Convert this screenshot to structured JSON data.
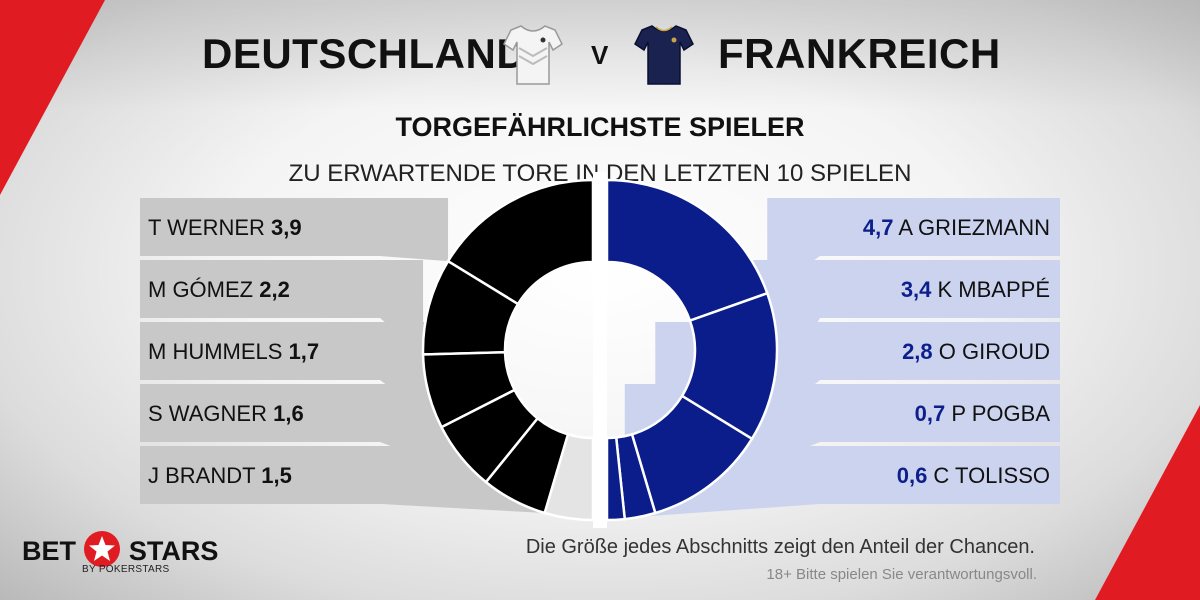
{
  "header": {
    "team_left": "DEUTSCHLAND",
    "vs": "V",
    "team_right": "FRANKREICH"
  },
  "title": "TORGEFÄHRLICHSTE SPIELER",
  "subtitle": "ZU ERWARTENDE TORE IN DEN LETZTEN 10 SPIELEN",
  "footnote": "Die Größe jedes Abschnitts zeigt den Anteil der Chancen.",
  "disclaimer": "18+ Bitte spielen Sie verantwortungsvoll.",
  "logo": {
    "left": "BET",
    "right": "STARS",
    "sub": "BY POKERSTARS"
  },
  "colors": {
    "germany_segment": "#000000",
    "germany_panel": "#c8c8c8",
    "france_segment": "#0b1d8a",
    "france_panel": "#ccd3ee",
    "remainder": "#e4e4e4",
    "brand_red": "#e11b22"
  },
  "icons": {
    "left_jersey": "germany-white-jersey-icon",
    "right_jersey": "france-navy-jersey-icon",
    "logo_star": "star-icon"
  },
  "chart_data": [
    {
      "type": "pie",
      "series": [
        {
          "name": "DEUTSCHLAND",
          "labels": [
            "T WERNER",
            "M GÓMEZ",
            "M HUMMELS",
            "S WAGNER",
            "J BRANDT"
          ],
          "values": [
            3.9,
            2.2,
            1.7,
            1.6,
            1.5
          ],
          "value_labels": [
            "3,9",
            "2,2",
            "1,7",
            "1,6",
            "1,5"
          ]
        },
        {
          "name": "FRANKREICH",
          "labels": [
            "A GRIEZMANN",
            "K MBAPPÉ",
            "O GIROUD",
            "P POGBA",
            "C TOLISSO"
          ],
          "values": [
            4.7,
            3.4,
            2.8,
            0.7,
            0.6
          ],
          "value_labels": [
            "4,7",
            "3,4",
            "2,8",
            "0,7",
            "0,6"
          ]
        }
      ]
    }
  ]
}
